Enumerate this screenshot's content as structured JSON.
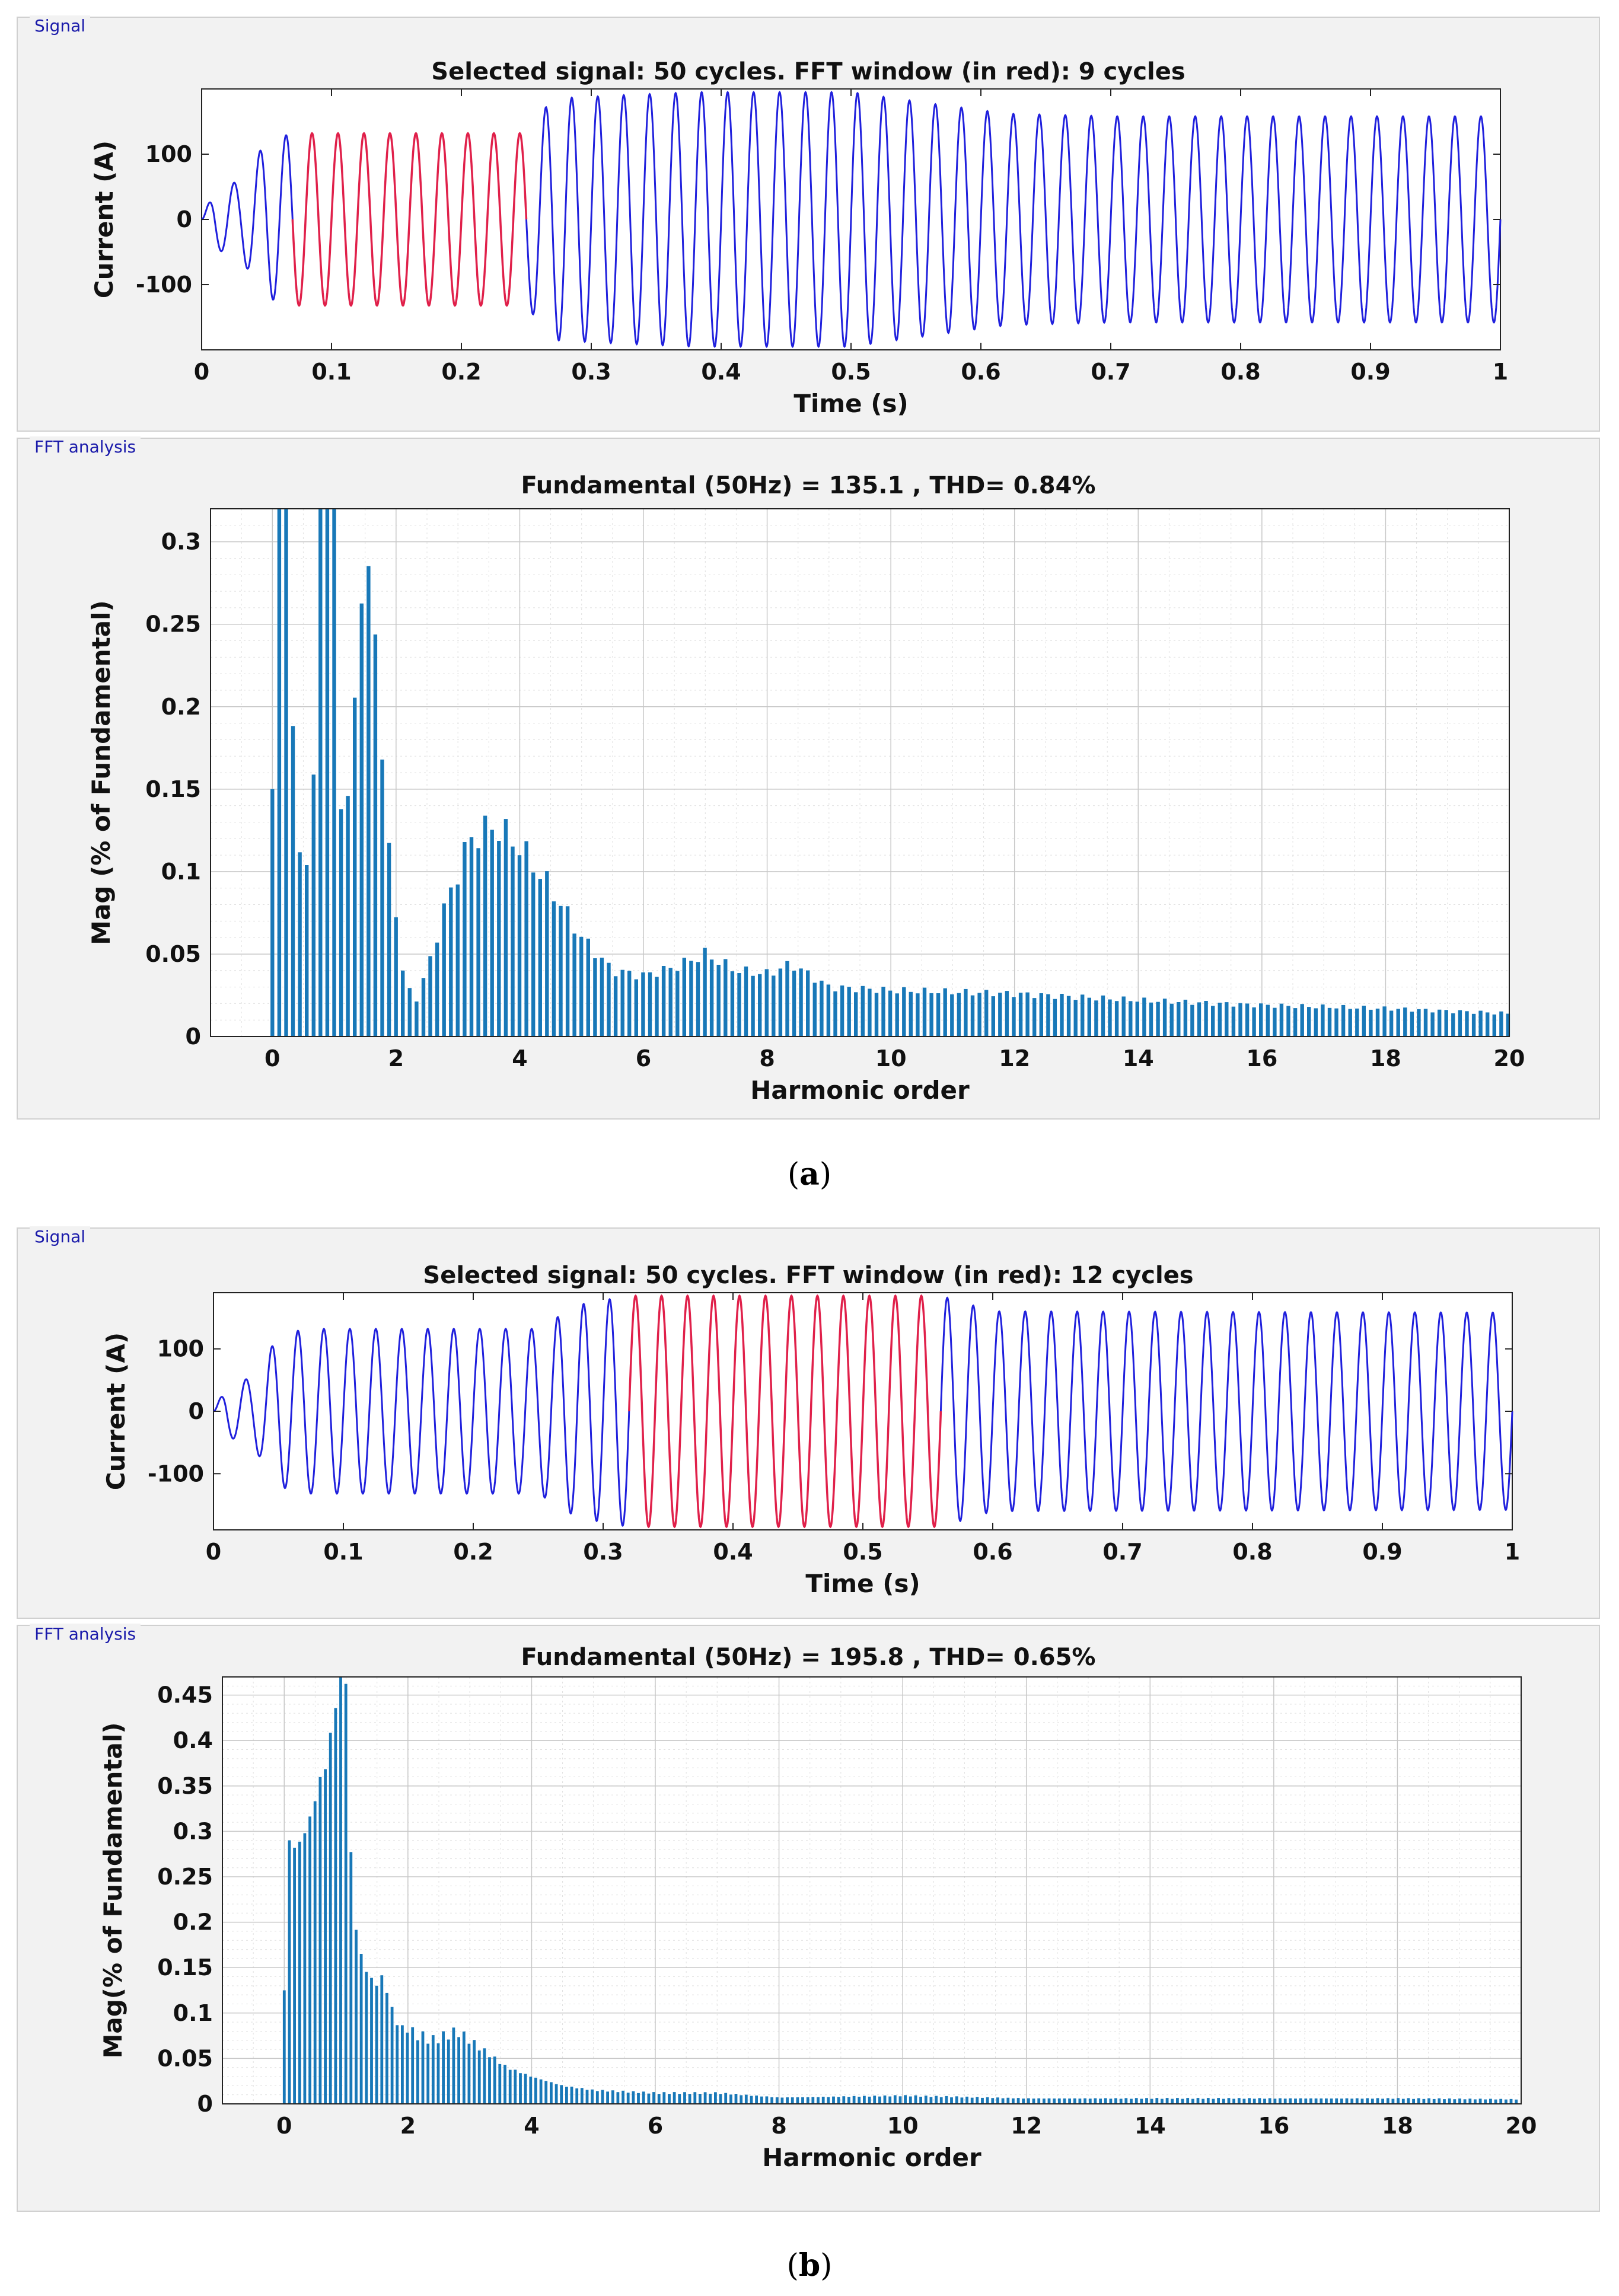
{
  "figure_a": {
    "caption_open": "(",
    "caption_letter": "a",
    "caption_close": ")",
    "signal_panel": {
      "label": "Signal"
    },
    "fft_panel": {
      "label": "FFT analysis"
    }
  },
  "figure_b": {
    "caption_open": "(",
    "caption_letter": "b",
    "caption_close": ")",
    "signal_panel": {
      "label": "Signal"
    },
    "fft_panel": {
      "label": "FFT analysis"
    }
  },
  "colors": {
    "signal": "#2020dd",
    "window": "#e0204a",
    "bars": "#1878b8",
    "grid": "#c8c8c8",
    "axis": "#222222"
  },
  "chart_data": [
    {
      "id": "a-signal",
      "type": "line",
      "title": "Selected signal: 50 cycles. FFT window (in red): 9 cycles",
      "xlabel": "Time (s)",
      "ylabel": "Current (A)",
      "xlim": [
        0,
        1
      ],
      "ylim": [
        -200,
        200
      ],
      "xticks": [
        "0",
        "0.1",
        "0.2",
        "0.3",
        "0.4",
        "0.5",
        "0.6",
        "0.7",
        "0.8",
        "0.9",
        "1"
      ],
      "yticks": [
        "100",
        "0",
        "-100"
      ],
      "ytick_values": [
        100,
        0,
        -100
      ],
      "frequency_hz": 50,
      "cycles": 50,
      "fft_window": {
        "cycles": 9,
        "start_s": 0.07,
        "end_s": 0.25
      },
      "envelope": [
        {
          "t": 0.0,
          "amp": 0
        },
        {
          "t": 0.01,
          "amp": 45
        },
        {
          "t": 0.03,
          "amp": 60
        },
        {
          "t": 0.05,
          "amp": 120
        },
        {
          "t": 0.07,
          "amp": 132
        },
        {
          "t": 0.25,
          "amp": 132
        },
        {
          "t": 0.27,
          "amp": 185
        },
        {
          "t": 0.32,
          "amp": 190
        },
        {
          "t": 0.38,
          "amp": 195
        },
        {
          "t": 0.5,
          "amp": 195
        },
        {
          "t": 0.56,
          "amp": 178
        },
        {
          "t": 0.62,
          "amp": 162
        },
        {
          "t": 0.7,
          "amp": 158
        },
        {
          "t": 1.0,
          "amp": 158
        }
      ]
    },
    {
      "id": "a-fft",
      "type": "bar",
      "title": "Fundamental (50Hz) = 135.1 , THD= 0.84%",
      "xlabel": "Harmonic order",
      "ylabel": "Mag (% of Fundamental)",
      "xlim": [
        -1,
        20
      ],
      "ylim": [
        0,
        0.32
      ],
      "xticks": [
        "0",
        "2",
        "4",
        "6",
        "8",
        "10",
        "12",
        "14",
        "16",
        "18",
        "20"
      ],
      "xtick_values": [
        0,
        2,
        4,
        6,
        8,
        10,
        12,
        14,
        16,
        18,
        20
      ],
      "yticks": [
        "0",
        "0.05",
        "0.1",
        "0.15",
        "0.2",
        "0.25",
        "0.3"
      ],
      "ytick_values": [
        0,
        0.05,
        0.1,
        0.15,
        0.2,
        0.25,
        0.3
      ],
      "bar_spacing": 0.111,
      "profile": [
        {
          "h": 0.0,
          "v": 0.15
        },
        {
          "h": 0.05,
          "v": 0.34
        },
        {
          "h": 0.2,
          "v": 0.34
        },
        {
          "h": 0.35,
          "v": 0.17
        },
        {
          "h": 0.45,
          "v": 0.11
        },
        {
          "h": 0.55,
          "v": 0.1
        },
        {
          "h": 0.65,
          "v": 0.13
        },
        {
          "h": 0.75,
          "v": 0.32
        },
        {
          "h": 0.85,
          "v": 0.34
        },
        {
          "h": 1.0,
          "v": 0.34
        },
        {
          "h": 1.1,
          "v": 0.14
        },
        {
          "h": 1.2,
          "v": 0.13
        },
        {
          "h": 1.35,
          "v": 0.22
        },
        {
          "h": 1.5,
          "v": 0.29
        },
        {
          "h": 1.65,
          "v": 0.26
        },
        {
          "h": 1.8,
          "v": 0.15
        },
        {
          "h": 1.95,
          "v": 0.09
        },
        {
          "h": 2.1,
          "v": 0.04
        },
        {
          "h": 2.3,
          "v": 0.02
        },
        {
          "h": 2.5,
          "v": 0.04
        },
        {
          "h": 2.8,
          "v": 0.08
        },
        {
          "h": 3.2,
          "v": 0.12
        },
        {
          "h": 3.6,
          "v": 0.128
        },
        {
          "h": 4.0,
          "v": 0.115
        },
        {
          "h": 4.5,
          "v": 0.09
        },
        {
          "h": 5.0,
          "v": 0.06
        },
        {
          "h": 5.5,
          "v": 0.04
        },
        {
          "h": 6.0,
          "v": 0.037
        },
        {
          "h": 6.5,
          "v": 0.042
        },
        {
          "h": 7.0,
          "v": 0.05
        },
        {
          "h": 7.5,
          "v": 0.04
        },
        {
          "h": 8.0,
          "v": 0.038
        },
        {
          "h": 8.4,
          "v": 0.044
        },
        {
          "h": 9.0,
          "v": 0.03
        },
        {
          "h": 10.0,
          "v": 0.028
        },
        {
          "h": 12.0,
          "v": 0.026
        },
        {
          "h": 14.0,
          "v": 0.022
        },
        {
          "h": 16.0,
          "v": 0.019
        },
        {
          "h": 18.0,
          "v": 0.017
        },
        {
          "h": 20.0,
          "v": 0.014
        }
      ]
    },
    {
      "id": "b-signal",
      "type": "line",
      "title": "Selected signal: 50 cycles. FFT window (in red): 12 cycles",
      "xlabel": "Time (s)",
      "ylabel": "Current (A)",
      "xlim": [
        0,
        1
      ],
      "ylim": [
        -190,
        190
      ],
      "xticks": [
        "0",
        "0.1",
        "0.2",
        "0.3",
        "0.4",
        "0.5",
        "0.6",
        "0.7",
        "0.8",
        "0.9",
        "1"
      ],
      "yticks": [
        "100",
        "0",
        "-100"
      ],
      "ytick_values": [
        100,
        0,
        -100
      ],
      "frequency_hz": 50,
      "cycles": 50,
      "fft_window": {
        "cycles": 12,
        "start_s": 0.32,
        "end_s": 0.56
      },
      "envelope": [
        {
          "t": 0.0,
          "amp": 0
        },
        {
          "t": 0.01,
          "amp": 40
        },
        {
          "t": 0.03,
          "amp": 55
        },
        {
          "t": 0.05,
          "amp": 120
        },
        {
          "t": 0.07,
          "amp": 132
        },
        {
          "t": 0.25,
          "amp": 132
        },
        {
          "t": 0.28,
          "amp": 170
        },
        {
          "t": 0.32,
          "amp": 185
        },
        {
          "t": 0.56,
          "amp": 185
        },
        {
          "t": 0.6,
          "amp": 160
        },
        {
          "t": 1.0,
          "amp": 158
        }
      ]
    },
    {
      "id": "b-fft",
      "type": "bar",
      "title": "Fundamental (50Hz) = 195.8 , THD= 0.65%",
      "xlabel": "Harmonic order",
      "ylabel": "Mag(% of Fundamental)",
      "xlim": [
        -1,
        20
      ],
      "ylim": [
        0,
        0.47
      ],
      "xticks": [
        "0",
        "2",
        "4",
        "6",
        "8",
        "10",
        "12",
        "14",
        "16",
        "18",
        "20"
      ],
      "xtick_values": [
        0,
        2,
        4,
        6,
        8,
        10,
        12,
        14,
        16,
        18,
        20
      ],
      "yticks": [
        "0",
        "0.05",
        "0.1",
        "0.15",
        "0.2",
        "0.25",
        "0.3",
        "0.35",
        "0.4",
        "0.45"
      ],
      "ytick_values": [
        0,
        0.05,
        0.1,
        0.15,
        0.2,
        0.25,
        0.3,
        0.35,
        0.4,
        0.45
      ],
      "bar_spacing": 0.083,
      "profile": [
        {
          "h": 0.0,
          "v": 0.125
        },
        {
          "h": 0.08,
          "v": 0.29
        },
        {
          "h": 0.2,
          "v": 0.28
        },
        {
          "h": 0.4,
          "v": 0.31
        },
        {
          "h": 0.55,
          "v": 0.35
        },
        {
          "h": 0.7,
          "v": 0.38
        },
        {
          "h": 0.8,
          "v": 0.43
        },
        {
          "h": 0.9,
          "v": 0.47
        },
        {
          "h": 1.0,
          "v": 0.47
        },
        {
          "h": 1.1,
          "v": 0.22
        },
        {
          "h": 1.25,
          "v": 0.16
        },
        {
          "h": 1.45,
          "v": 0.13
        },
        {
          "h": 1.6,
          "v": 0.14
        },
        {
          "h": 1.8,
          "v": 0.09
        },
        {
          "h": 2.0,
          "v": 0.08
        },
        {
          "h": 2.4,
          "v": 0.07
        },
        {
          "h": 2.8,
          "v": 0.08
        },
        {
          "h": 3.2,
          "v": 0.06
        },
        {
          "h": 3.6,
          "v": 0.04
        },
        {
          "h": 4.0,
          "v": 0.03
        },
        {
          "h": 4.5,
          "v": 0.02
        },
        {
          "h": 5.0,
          "v": 0.015
        },
        {
          "h": 6.0,
          "v": 0.012
        },
        {
          "h": 7.0,
          "v": 0.012
        },
        {
          "h": 8.0,
          "v": 0.007
        },
        {
          "h": 10.0,
          "v": 0.009
        },
        {
          "h": 12.0,
          "v": 0.006
        },
        {
          "h": 14.0,
          "v": 0.006
        },
        {
          "h": 16.0,
          "v": 0.006
        },
        {
          "h": 18.0,
          "v": 0.006
        },
        {
          "h": 20.0,
          "v": 0.005
        }
      ]
    }
  ]
}
